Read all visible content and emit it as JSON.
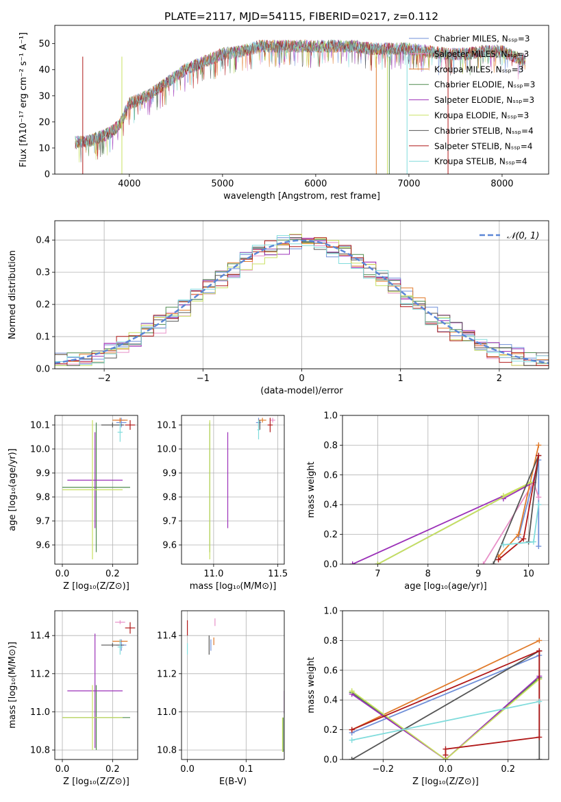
{
  "figure_title": "PLATE=2117, MJD=54115, FIBERID=0217, z=0.112",
  "colors": {
    "chabrier_miles": "#6f8fd8",
    "salpeter_miles": "#e890c8",
    "kroupa_miles": "#e07a2a",
    "chabrier_elodie": "#4e8a4e",
    "salpeter_elodie": "#9b30b8",
    "kroupa_elodie": "#c8e060",
    "chabrier_stelib": "#555555",
    "salpeter_stelib": "#b01818",
    "kroupa_stelib": "#80dcdc",
    "gaussian": "#5b86d6"
  },
  "chart_data": [
    {
      "id": "spectrum",
      "type": "line",
      "xlabel": "wavelength [Angstrom, rest frame]",
      "ylabel": "Flux [fλ10⁻¹⁷ erg cm⁻² s⁻¹ A⁻¹]",
      "xlim": [
        3200,
        8500
      ],
      "ylim": [
        0,
        57
      ],
      "xticks": [
        4000,
        5000,
        6000,
        7000,
        8000
      ],
      "yticks": [
        0,
        10,
        20,
        30,
        40,
        50
      ],
      "legend_position": "top-right",
      "series": [
        {
          "name": "Chabrier MILES, Nₛₛₚ=3",
          "color_key": "chabrier_miles"
        },
        {
          "name": "Salpeter MILES, Nₛₛₚ=3",
          "color_key": "salpeter_miles"
        },
        {
          "name": "Kroupa MILES, Nₛₛₚ=3",
          "color_key": "kroupa_miles"
        },
        {
          "name": "Chabrier ELODIE, Nₛₛₚ=3",
          "color_key": "chabrier_elodie"
        },
        {
          "name": "Salpeter ELODIE, Nₛₛₚ=3",
          "color_key": "salpeter_elodie"
        },
        {
          "name": "Kroupa ELODIE, Nₛₛₚ=3",
          "color_key": "kroupa_elodie"
        },
        {
          "name": "Chabrier STELIB, Nₛₛₚ=4",
          "color_key": "chabrier_stelib"
        },
        {
          "name": "Salpeter STELIB, Nₛₛₚ=4",
          "color_key": "salpeter_stelib"
        },
        {
          "name": "Kroupa STELIB, Nₛₛₚ=4",
          "color_key": "kroupa_stelib"
        }
      ],
      "continuum": {
        "x": [
          3400,
          3600,
          3800,
          3900,
          4000,
          4200,
          4400,
          4600,
          4800,
          5000,
          5200,
          5400,
          5600,
          5800,
          6000,
          6200,
          6400,
          6600,
          6800,
          7000,
          7200,
          7400,
          7600,
          7800,
          8000,
          8200
        ],
        "y": [
          12,
          13,
          16,
          19,
          27,
          30,
          35,
          40,
          43,
          46,
          47,
          49,
          49,
          49,
          49,
          49,
          49,
          48,
          48,
          48,
          47,
          46,
          46,
          47,
          47,
          44
        ]
      }
    },
    {
      "id": "residuals",
      "type": "line",
      "xlabel": "(data-model)/error",
      "ylabel": "Normed distribution",
      "xlim": [
        -2.5,
        2.5
      ],
      "ylim": [
        0,
        0.46
      ],
      "xticks": [
        -2,
        -1,
        0,
        1,
        2
      ],
      "yticks": [
        0.0,
        0.1,
        0.2,
        0.3,
        0.4
      ],
      "legend_position": "top-right",
      "gaussian_label": "𝒩(0, 1)",
      "gaussian": {
        "mean": 0,
        "sigma": 1
      }
    },
    {
      "id": "age_vs_Z",
      "type": "scatter",
      "xlabel": "Z [log₁₀(Z/Z⊙)]",
      "ylabel": "age  [log₁₀(age/yr)]",
      "xlim": [
        -0.03,
        0.3
      ],
      "ylim": [
        9.52,
        10.14
      ],
      "xticks": [
        0.0,
        0.2
      ],
      "yticks": [
        9.6,
        9.7,
        9.8,
        9.9,
        10.0,
        10.1
      ],
      "points": [
        {
          "color_key": "chabrier_miles",
          "x": 0.235,
          "y": 10.11,
          "xerr": 0.02,
          "yerr": 0.02
        },
        {
          "color_key": "salpeter_miles",
          "x": 0.23,
          "y": 10.12,
          "xerr": 0.02,
          "yerr": 0.01
        },
        {
          "color_key": "kroupa_miles",
          "x": 0.23,
          "y": 10.12,
          "xerr": 0.03,
          "yerr": 0.01
        },
        {
          "color_key": "chabrier_elodie",
          "x": 0.135,
          "y": 9.84,
          "xerr": 0.135,
          "yerr": 0.27
        },
        {
          "color_key": "salpeter_elodie",
          "x": 0.13,
          "y": 9.87,
          "xerr": 0.11,
          "yerr": 0.2
        },
        {
          "color_key": "kroupa_elodie",
          "x": 0.12,
          "y": 9.83,
          "xerr": 0.12,
          "yerr": 0.29
        },
        {
          "color_key": "chabrier_stelib",
          "x": 0.2,
          "y": 10.1,
          "xerr": 0.045,
          "yerr": 0.01
        },
        {
          "color_key": "salpeter_stelib",
          "x": 0.27,
          "y": 10.1,
          "xerr": 0.02,
          "yerr": 0.02
        },
        {
          "color_key": "kroupa_stelib",
          "x": 0.23,
          "y": 10.07,
          "xerr": 0.01,
          "yerr": 0.04
        }
      ]
    },
    {
      "id": "age_vs_mass",
      "type": "scatter",
      "xlabel": "mass [log₁₀(M/M⊙)]",
      "ylabel": "",
      "xlim": [
        10.75,
        11.55
      ],
      "ylim": [
        9.52,
        10.14
      ],
      "xticks": [
        11.0,
        11.5
      ],
      "yticks": [
        9.6,
        9.7,
        9.8,
        9.9,
        10.0,
        10.1
      ],
      "points": [
        {
          "color_key": "chabrier_miles",
          "x": 11.35,
          "y": 10.11,
          "xerr": 0.02,
          "yerr": 0.02
        },
        {
          "color_key": "salpeter_miles",
          "x": 11.46,
          "y": 10.12,
          "xerr": 0.02,
          "yerr": 0.01
        },
        {
          "color_key": "kroupa_miles",
          "x": 11.38,
          "y": 10.12,
          "xerr": 0.03,
          "yerr": 0.01
        },
        {
          "color_key": "chabrier_elodie",
          "x": 10.97,
          "y": 9.84,
          "xerr": 0.0,
          "yerr": 0.27
        },
        {
          "color_key": "salpeter_elodie",
          "x": 11.11,
          "y": 9.87,
          "xerr": 0.0,
          "yerr": 0.2
        },
        {
          "color_key": "kroupa_elodie",
          "x": 10.97,
          "y": 9.83,
          "xerr": 0.0,
          "yerr": 0.29
        },
        {
          "color_key": "chabrier_stelib",
          "x": 11.36,
          "y": 10.1,
          "xerr": 0.0,
          "yerr": 0.02
        },
        {
          "color_key": "salpeter_stelib",
          "x": 11.44,
          "y": 10.1,
          "xerr": 0.02,
          "yerr": 0.03
        },
        {
          "color_key": "kroupa_stelib",
          "x": 11.35,
          "y": 10.08,
          "xerr": 0.01,
          "yerr": 0.04
        }
      ]
    },
    {
      "id": "mass_weight_vs_age",
      "type": "line",
      "xlabel": "age  [log₁₀(age/yr)]",
      "ylabel": "mass weight",
      "xlim": [
        6.3,
        10.4
      ],
      "ylim": [
        0,
        1.0
      ],
      "xticks": [
        7,
        8,
        9,
        10
      ],
      "yticks": [
        0.0,
        0.2,
        0.4,
        0.6,
        0.8,
        1.0
      ],
      "series": [
        {
          "color_key": "chabrier_miles",
          "x": [
            9.8,
            10.2,
            10.2
          ],
          "y": [
            0.18,
            0.7,
            0.12
          ]
        },
        {
          "color_key": "salpeter_miles",
          "x": [
            9.1,
            10.1,
            10.2
          ],
          "y": [
            0.0,
            0.55,
            0.45
          ]
        },
        {
          "color_key": "kroupa_miles",
          "x": [
            9.4,
            9.8,
            10.2
          ],
          "y": [
            0.05,
            0.2,
            0.8
          ]
        },
        {
          "color_key": "chabrier_elodie",
          "x": [
            7.0,
            10.05
          ],
          "y": [
            0.0,
            0.55
          ]
        },
        {
          "color_key": "salpeter_elodie",
          "x": [
            6.5,
            10.1,
            9.5
          ],
          "y": [
            0.0,
            0.55,
            0.44
          ]
        },
        {
          "color_key": "kroupa_elodie",
          "x": [
            7.0,
            10.05,
            9.5
          ],
          "y": [
            0.0,
            0.55,
            0.46
          ]
        },
        {
          "color_key": "chabrier_stelib",
          "x": [
            9.3,
            10.2,
            10.0
          ],
          "y": [
            0.0,
            0.73,
            0.15
          ]
        },
        {
          "color_key": "salpeter_stelib",
          "x": [
            9.4,
            9.9,
            10.2
          ],
          "y": [
            0.03,
            0.17,
            0.73
          ]
        },
        {
          "color_key": "kroupa_stelib",
          "x": [
            9.5,
            10.1,
            10.2
          ],
          "y": [
            0.13,
            0.15,
            0.4
          ]
        }
      ]
    },
    {
      "id": "mass_vs_Z",
      "type": "scatter",
      "xlabel": "Z [log₁₀(Z/Z⊙)]",
      "ylabel": "mass [log₁₀(M/M⊙)]",
      "xlim": [
        -0.03,
        0.3
      ],
      "ylim": [
        10.75,
        11.53
      ],
      "xticks": [
        0.0,
        0.2
      ],
      "yticks": [
        10.8,
        11.0,
        11.2,
        11.4
      ],
      "points": [
        {
          "color_key": "chabrier_miles",
          "x": 0.235,
          "y": 11.35,
          "xerr": 0.02,
          "yerr": 0.03
        },
        {
          "color_key": "salpeter_miles",
          "x": 0.23,
          "y": 11.47,
          "xerr": 0.02,
          "yerr": 0.01
        },
        {
          "color_key": "kroupa_miles",
          "x": 0.23,
          "y": 11.37,
          "xerr": 0.03,
          "yerr": 0.01
        },
        {
          "color_key": "chabrier_elodie",
          "x": 0.135,
          "y": 10.97,
          "xerr": 0.135,
          "yerr": 0.17
        },
        {
          "color_key": "salpeter_elodie",
          "x": 0.13,
          "y": 11.11,
          "xerr": 0.11,
          "yerr": 0.3
        },
        {
          "color_key": "kroupa_elodie",
          "x": 0.12,
          "y": 10.97,
          "xerr": 0.12,
          "yerr": 0.17
        },
        {
          "color_key": "chabrier_stelib",
          "x": 0.2,
          "y": 11.35,
          "xerr": 0.045,
          "yerr": 0.01
        },
        {
          "color_key": "salpeter_stelib",
          "x": 0.27,
          "y": 11.44,
          "xerr": 0.02,
          "yerr": 0.03
        },
        {
          "color_key": "kroupa_stelib",
          "x": 0.23,
          "y": 11.34,
          "xerr": 0.01,
          "yerr": 0.04
        }
      ]
    },
    {
      "id": "mass_vs_ebv",
      "type": "scatter",
      "xlabel": "E(B-V)",
      "ylabel": "",
      "xlim": [
        -0.01,
        0.165
      ],
      "ylim": [
        10.75,
        11.53
      ],
      "xticks": [
        0.0,
        0.1
      ],
      "yticks": [
        10.8,
        11.0,
        11.2,
        11.4
      ],
      "points": [
        {
          "color_key": "chabrier_miles",
          "x": 0.04,
          "y": 11.35,
          "xerr": 0,
          "yerr": 0.03
        },
        {
          "color_key": "salpeter_miles",
          "x": 0.047,
          "y": 11.47,
          "xerr": 0,
          "yerr": 0.02
        },
        {
          "color_key": "kroupa_miles",
          "x": 0.045,
          "y": 11.37,
          "xerr": 0,
          "yerr": 0.02
        },
        {
          "color_key": "chabrier_elodie",
          "x": 0.163,
          "y": 10.88,
          "xerr": 0,
          "yerr": 0.09
        },
        {
          "color_key": "salpeter_elodie",
          "x": 0.165,
          "y": 11.05,
          "xerr": 0,
          "yerr": 0.06
        },
        {
          "color_key": "kroupa_elodie",
          "x": 0.162,
          "y": 10.88,
          "xerr": 0,
          "yerr": 0.09
        },
        {
          "color_key": "chabrier_stelib",
          "x": 0.037,
          "y": 11.35,
          "xerr": 0,
          "yerr": 0.05
        },
        {
          "color_key": "salpeter_stelib",
          "x": 0.0,
          "y": 11.44,
          "xerr": 0,
          "yerr": 0.04
        },
        {
          "color_key": "kroupa_stelib",
          "x": 0.0,
          "y": 11.33,
          "xerr": 0,
          "yerr": 0.03
        }
      ]
    },
    {
      "id": "mass_weight_vs_Z",
      "type": "line",
      "xlabel": "Z [log₁₀(Z/Z⊙)]",
      "ylabel": "mass weight",
      "xlim": [
        -0.33,
        0.33
      ],
      "ylim": [
        0,
        1.0
      ],
      "xticks": [
        -0.2,
        0.0,
        0.2
      ],
      "yticks": [
        0.0,
        0.2,
        0.4,
        0.6,
        0.8,
        1.0
      ],
      "series": [
        {
          "color_key": "chabrier_miles",
          "x": [
            -0.3,
            0.3
          ],
          "y": [
            0.18,
            0.7
          ]
        },
        {
          "color_key": "salpeter_miles",
          "x": [
            -0.3,
            0.0,
            0.3
          ],
          "y": [
            0.45,
            0.0,
            0.55
          ]
        },
        {
          "color_key": "kroupa_miles",
          "x": [
            -0.3,
            0.3
          ],
          "y": [
            0.2,
            0.8
          ]
        },
        {
          "color_key": "chabrier_elodie",
          "x": [
            -0.3,
            0.0,
            0.3
          ],
          "y": [
            0.45,
            0.0,
            0.55
          ]
        },
        {
          "color_key": "salpeter_elodie",
          "x": [
            -0.3,
            0.0,
            0.3
          ],
          "y": [
            0.44,
            0.0,
            0.56
          ]
        },
        {
          "color_key": "kroupa_elodie",
          "x": [
            -0.3,
            0.0,
            0.3
          ],
          "y": [
            0.46,
            0.0,
            0.54
          ]
        },
        {
          "color_key": "chabrier_stelib",
          "x": [
            -0.3,
            0.3,
            0.3
          ],
          "y": [
            0.0,
            0.73,
            0.0
          ]
        },
        {
          "color_key": "salpeter_stelib",
          "x": [
            -0.3,
            0.3
          ],
          "y": [
            0.2,
            0.73
          ]
        },
        {
          "color_key": "salpeter_stelib",
          "x": [
            0.0,
            0.0,
            0.3,
            0.3
          ],
          "y": [
            0.03,
            0.07,
            0.15,
            0.73
          ]
        },
        {
          "color_key": "kroupa_stelib",
          "x": [
            -0.3,
            0.3
          ],
          "y": [
            0.13,
            0.39
          ]
        }
      ]
    }
  ]
}
